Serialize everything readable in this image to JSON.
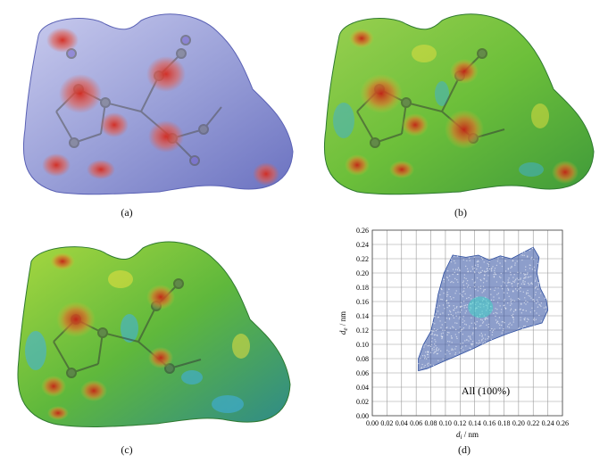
{
  "captions": {
    "a": "(a)",
    "b": "(b)",
    "c": "(c)",
    "d": "(d)"
  },
  "colors": {
    "dnorm_surface": "#9aa0d8",
    "shape_surface": "#6cbf3a",
    "hotspot": "#d42a1e",
    "fingerprint_points": "#2f4fa0",
    "fingerprint_core": "#3fd2c8"
  },
  "chart_data": {
    "type": "scatter",
    "title": "",
    "xlabel": "d_i / nm",
    "ylabel": "d_e / nm",
    "xlabel_parts": {
      "main": "d",
      "sub": "i",
      "unit": " / nm"
    },
    "ylabel_parts": {
      "main": "d",
      "sub": "e",
      "unit": " / nm"
    },
    "xlim": [
      0.0,
      0.26
    ],
    "ylim": [
      0.0,
      0.26
    ],
    "x_ticks": [
      "0.00",
      "0.02",
      "0.04",
      "0.06",
      "0.08",
      "0.10",
      "0.12",
      "0.14",
      "0.16",
      "0.18",
      "0.20",
      "0.22",
      "0.24",
      "0.26"
    ],
    "y_ticks": [
      "0.00",
      "0.02",
      "0.04",
      "0.06",
      "0.08",
      "0.10",
      "0.12",
      "0.14",
      "0.16",
      "0.18",
      "0.20",
      "0.22",
      "0.24",
      "0.26"
    ],
    "grid": true,
    "annotation": "All (100%)",
    "regions": [
      {
        "name": "",
        "polygon": [
          [
            0.063,
            0.063
          ],
          [
            0.075,
            0.066
          ],
          [
            0.095,
            0.075
          ],
          [
            0.118,
            0.085
          ],
          [
            0.14,
            0.095
          ],
          [
            0.16,
            0.105
          ],
          [
            0.185,
            0.115
          ],
          [
            0.205,
            0.122
          ],
          [
            0.232,
            0.13
          ],
          [
            0.24,
            0.148
          ],
          [
            0.238,
            0.162
          ],
          [
            0.23,
            0.178
          ],
          [
            0.225,
            0.2
          ],
          [
            0.228,
            0.222
          ],
          [
            0.22,
            0.236
          ],
          [
            0.205,
            0.228
          ],
          [
            0.19,
            0.22
          ],
          [
            0.175,
            0.224
          ],
          [
            0.16,
            0.218
          ],
          [
            0.145,
            0.225
          ],
          [
            0.128,
            0.222
          ],
          [
            0.11,
            0.225
          ],
          [
            0.098,
            0.2
          ],
          [
            0.09,
            0.17
          ],
          [
            0.085,
            0.14
          ],
          [
            0.08,
            0.118
          ],
          [
            0.07,
            0.1
          ],
          [
            0.063,
            0.08
          ]
        ]
      }
    ]
  }
}
